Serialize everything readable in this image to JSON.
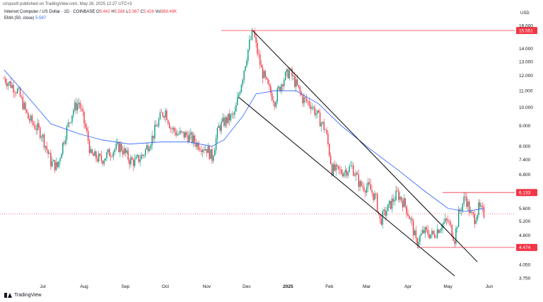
{
  "header": {
    "published": "crispus9 published on TradingView.com, May 28, 2025 12:27 UTC+3",
    "symbol": "Internet Computer / US Dollar · 1D · COINBASE",
    "ohlc": [
      {
        "label": "O",
        "value": "5.442"
      },
      {
        "label": "H",
        "value": "5.566"
      },
      {
        "label": "L",
        "value": "5.367"
      },
      {
        "label": "C",
        "value": "5.426"
      },
      {
        "label": "Vol",
        "value": "368.49K"
      }
    ],
    "ema_label": "EMA (50, close)",
    "ema_value": "5.597"
  },
  "brand": "TradingView",
  "colors": {
    "up": "#089981",
    "down": "#f23645",
    "ema": "#2962ff",
    "line": "#000000",
    "level": "#f23645"
  },
  "chart_data": {
    "type": "candlestick",
    "currency": "USD",
    "y_scale": "log",
    "ylim": [
      3.65,
      16.4
    ],
    "y_ticks": [
      "3.750",
      "4.050",
      "4.474",
      "4.800",
      "5.200",
      "5.600",
      "6.133",
      "6.800",
      "7.400",
      "8.000",
      "9.000",
      "10.000",
      "11.000",
      "12.000",
      "13.000",
      "14.000",
      "15.551",
      "16.000"
    ],
    "x_ticks": [
      "Jul",
      "Aug",
      "Sep",
      "Oct",
      "Nov",
      "Dec",
      "2025",
      "Feb",
      "Mar",
      "Apr",
      "May",
      "Jun"
    ],
    "x_tick_dates": [
      "2024-07-01",
      "2024-08-01",
      "2024-09-01",
      "2024-10-01",
      "2024-11-01",
      "2024-12-01",
      "2025-01-01",
      "2025-02-01",
      "2025-03-01",
      "2025-04-01",
      "2025-05-01",
      "2025-06-01"
    ],
    "price_path": [
      [
        "2024-06-02",
        11.8
      ],
      [
        "2024-06-12",
        11.0
      ],
      [
        "2024-06-20",
        9.4
      ],
      [
        "2024-06-30",
        8.6
      ],
      [
        "2024-07-07",
        7.3
      ],
      [
        "2024-07-12",
        7.1
      ],
      [
        "2024-07-18",
        8.6
      ],
      [
        "2024-07-24",
        9.9
      ],
      [
        "2024-07-28",
        10.3
      ],
      [
        "2024-08-04",
        8.3
      ],
      [
        "2024-08-06",
        7.6
      ],
      [
        "2024-08-14",
        7.4
      ],
      [
        "2024-08-22",
        7.8
      ],
      [
        "2024-08-28",
        8.0
      ],
      [
        "2024-09-04",
        7.4
      ],
      [
        "2024-09-08",
        7.3
      ],
      [
        "2024-09-14",
        7.6
      ],
      [
        "2024-09-21",
        8.4
      ],
      [
        "2024-09-28",
        9.6
      ],
      [
        "2024-10-01",
        9.8
      ],
      [
        "2024-10-05",
        8.9
      ],
      [
        "2024-10-10",
        8.6
      ],
      [
        "2024-10-18",
        8.5
      ],
      [
        "2024-10-25",
        8.1
      ],
      [
        "2024-11-01",
        7.9
      ],
      [
        "2024-11-05",
        7.5
      ],
      [
        "2024-11-10",
        8.9
      ],
      [
        "2024-11-14",
        9.2
      ],
      [
        "2024-11-22",
        9.6
      ],
      [
        "2024-11-28",
        12.0
      ],
      [
        "2024-12-03",
        14.4
      ],
      [
        "2024-12-06",
        15.5
      ],
      [
        "2024-12-08",
        14.2
      ],
      [
        "2024-12-12",
        12.4
      ],
      [
        "2024-12-17",
        11.2
      ],
      [
        "2024-12-22",
        10.4
      ],
      [
        "2024-12-28",
        11.7
      ],
      [
        "2025-01-02",
        12.3
      ],
      [
        "2025-01-07",
        11.4
      ],
      [
        "2025-01-12",
        10.5
      ],
      [
        "2025-01-18",
        10.2
      ],
      [
        "2025-01-24",
        9.4
      ],
      [
        "2025-01-29",
        8.8
      ],
      [
        "2025-02-03",
        7.0
      ],
      [
        "2025-02-10",
        6.9
      ],
      [
        "2025-02-18",
        7.1
      ],
      [
        "2025-02-24",
        6.4
      ],
      [
        "2025-03-03",
        6.3
      ],
      [
        "2025-03-08",
        5.9
      ],
      [
        "2025-03-11",
        5.2
      ],
      [
        "2025-03-17",
        5.6
      ],
      [
        "2025-03-24",
        6.1
      ],
      [
        "2025-03-30",
        5.7
      ],
      [
        "2025-04-04",
        5.1
      ],
      [
        "2025-04-07",
        4.6
      ],
      [
        "2025-04-13",
        4.9
      ],
      [
        "2025-04-20",
        4.8
      ],
      [
        "2025-04-26",
        5.1
      ],
      [
        "2025-05-01",
        5.2
      ],
      [
        "2025-05-06",
        4.7
      ],
      [
        "2025-05-09",
        5.4
      ],
      [
        "2025-05-14",
        6.0
      ],
      [
        "2025-05-18",
        5.4
      ],
      [
        "2025-05-21",
        5.3
      ],
      [
        "2025-05-24",
        5.6
      ],
      [
        "2025-05-28",
        5.43
      ]
    ],
    "ema_path": [
      [
        "2024-06-02",
        12.4
      ],
      [
        "2024-06-20",
        10.6
      ],
      [
        "2024-07-07",
        9.1
      ],
      [
        "2024-07-28",
        8.6
      ],
      [
        "2024-08-14",
        8.3
      ],
      [
        "2024-09-04",
        8.1
      ],
      [
        "2024-09-28",
        8.2
      ],
      [
        "2024-10-18",
        8.2
      ],
      [
        "2024-11-05",
        8.0
      ],
      [
        "2024-11-14",
        8.3
      ],
      [
        "2024-11-28",
        9.5
      ],
      [
        "2024-12-08",
        10.8
      ],
      [
        "2024-12-22",
        11.0
      ],
      [
        "2025-01-07",
        11.0
      ],
      [
        "2025-01-24",
        10.2
      ],
      [
        "2025-02-10",
        9.0
      ],
      [
        "2025-03-03",
        7.9
      ],
      [
        "2025-03-24",
        7.0
      ],
      [
        "2025-04-13",
        6.2
      ],
      [
        "2025-05-01",
        5.6
      ],
      [
        "2025-05-14",
        5.5
      ],
      [
        "2025-05-28",
        5.597
      ]
    ],
    "channel_lines": [
      {
        "name": "upper",
        "from": [
          "2024-12-05",
          15.6
        ],
        "to": [
          "2025-05-23",
          4.12
        ]
      },
      {
        "name": "lower",
        "from": [
          "2024-11-25",
          10.6
        ],
        "to": [
          "2025-05-06",
          3.8
        ]
      }
    ],
    "horizontal_levels": [
      {
        "value": "15.551",
        "from": "2024-11-12"
      },
      {
        "value": "6.133",
        "from": "2025-04-27"
      },
      {
        "value": "4.474",
        "from": "2025-04-08"
      }
    ],
    "last_price_dotted": 5.43
  }
}
